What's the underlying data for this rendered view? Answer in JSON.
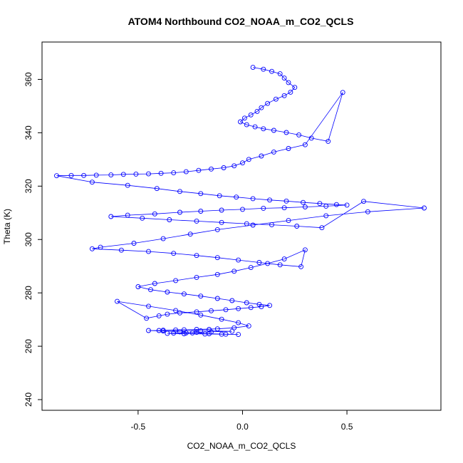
{
  "chart_data": {
    "type": "scatter",
    "title": "ATOM4 Northbound CO2_NOAA_m_CO2_QCLS",
    "xlabel": "CO2_NOAA_m_CO2_QCLS",
    "ylabel": "Theta (K)",
    "xlim": [
      -0.96,
      0.95
    ],
    "ylim": [
      236,
      374
    ],
    "x_ticks": [
      -0.5,
      0.0,
      0.5
    ],
    "x_tick_labels": [
      "-0.5",
      "0.0",
      "0.5"
    ],
    "y_ticks": [
      240,
      260,
      280,
      300,
      320,
      340,
      360
    ],
    "y_tick_labels": [
      "240",
      "260",
      "280",
      "300",
      "320",
      "340",
      "360"
    ],
    "grid": false,
    "legend": "none",
    "color": "#0000ff",
    "marker": "open-circle",
    "connected": true,
    "series": [
      {
        "x": [
          0.05,
          0.1,
          0.14,
          0.18,
          0.2,
          0.22,
          0.25,
          0.23,
          0.2,
          0.16,
          0.12,
          0.09,
          0.07,
          0.04,
          0.01,
          -0.01,
          0.02,
          0.06,
          0.1,
          0.15,
          0.21,
          0.27,
          0.33,
          0.41,
          0.48,
          0.3,
          0.22,
          0.15,
          0.09,
          0.03,
          0.0,
          -0.04,
          -0.09,
          -0.15,
          -0.21,
          -0.27,
          -0.33,
          -0.39,
          -0.45,
          -0.51,
          -0.57,
          -0.63,
          -0.7,
          -0.76,
          -0.82,
          -0.89,
          -0.72,
          -0.55,
          -0.41,
          -0.3,
          -0.2,
          -0.11,
          -0.03,
          0.05,
          0.13,
          0.21,
          0.29,
          0.37,
          0.45,
          0.5,
          0.4,
          0.3,
          0.2,
          0.1,
          0.0,
          -0.1,
          -0.2,
          -0.3,
          -0.42,
          -0.55,
          -0.63,
          -0.48,
          -0.35,
          -0.22,
          -0.1,
          0.02,
          0.14,
          0.26,
          0.38,
          0.58,
          0.87,
          0.6,
          0.4,
          0.22,
          0.05,
          -0.12,
          -0.25,
          -0.38,
          -0.52,
          -0.68,
          -0.72,
          -0.58,
          -0.45,
          -0.33,
          -0.22,
          -0.12,
          -0.02,
          0.08,
          0.18,
          0.28,
          0.3,
          0.2,
          0.12,
          0.04,
          -0.04,
          -0.12,
          -0.22,
          -0.32,
          -0.42,
          -0.5,
          -0.44,
          -0.36,
          -0.28,
          -0.2,
          -0.12,
          -0.05,
          0.02,
          0.08,
          0.13,
          0.09,
          0.04,
          -0.02,
          -0.08,
          -0.15,
          -0.22,
          -0.3,
          -0.36,
          -0.4,
          -0.46,
          -0.6,
          -0.45,
          -0.32,
          -0.2,
          -0.1,
          -0.02,
          0.03,
          -0.04,
          -0.12,
          -0.22,
          -0.32,
          -0.4,
          -0.45,
          -0.38,
          -0.3,
          -0.24,
          -0.16,
          -0.08,
          -0.02,
          -0.1,
          -0.18,
          -0.28,
          -0.36,
          -0.33,
          -0.27,
          -0.22,
          -0.15,
          -0.05,
          -0.2,
          -0.38,
          -0.28,
          -0.16
        ],
        "y": [
          364.5,
          363.8,
          363.0,
          362.1,
          360.5,
          358.8,
          357.0,
          355.2,
          353.9,
          352.6,
          351.0,
          349.4,
          348.0,
          346.7,
          345.5,
          344.1,
          343.0,
          342.2,
          341.5,
          340.9,
          340.1,
          339.2,
          338.0,
          336.8,
          355.1,
          335.5,
          334.1,
          332.8,
          331.3,
          330.0,
          328.7,
          327.6,
          326.9,
          326.4,
          325.9,
          325.4,
          325.0,
          324.8,
          324.6,
          324.5,
          324.4,
          324.2,
          324.1,
          324.0,
          324.0,
          323.9,
          321.5,
          320.3,
          319.1,
          318.0,
          317.2,
          316.4,
          315.9,
          315.3,
          314.8,
          314.4,
          313.9,
          313.5,
          313.1,
          312.9,
          312.5,
          312.2,
          311.9,
          311.7,
          311.3,
          311.0,
          310.6,
          310.2,
          309.6,
          309.1,
          308.6,
          308.0,
          307.4,
          306.9,
          306.4,
          305.9,
          305.5,
          305.0,
          304.4,
          314.3,
          311.8,
          310.4,
          308.9,
          307.1,
          305.4,
          303.7,
          302.0,
          300.3,
          298.6,
          297.1,
          296.5,
          296.0,
          295.5,
          294.8,
          294.0,
          293.2,
          292.3,
          291.4,
          290.5,
          289.8,
          296.1,
          292.7,
          291.0,
          289.5,
          288.1,
          286.9,
          285.8,
          284.6,
          283.5,
          282.3,
          281.2,
          280.3,
          279.6,
          278.8,
          277.9,
          277.1,
          276.3,
          275.7,
          275.3,
          274.8,
          274.5,
          274.1,
          273.7,
          273.3,
          272.9,
          272.5,
          272.0,
          271.4,
          270.5,
          276.8,
          275.0,
          273.4,
          271.7,
          270.1,
          268.8,
          267.6,
          266.9,
          266.5,
          266.3,
          266.1,
          265.9,
          265.9,
          265.7,
          265.4,
          265.0,
          264.7,
          264.5,
          264.4,
          264.5,
          264.6,
          264.7,
          264.8,
          264.9,
          265.0,
          265.2,
          265.4,
          265.6,
          265.8,
          266.0,
          266.2,
          266.3
        ]
      }
    ]
  }
}
